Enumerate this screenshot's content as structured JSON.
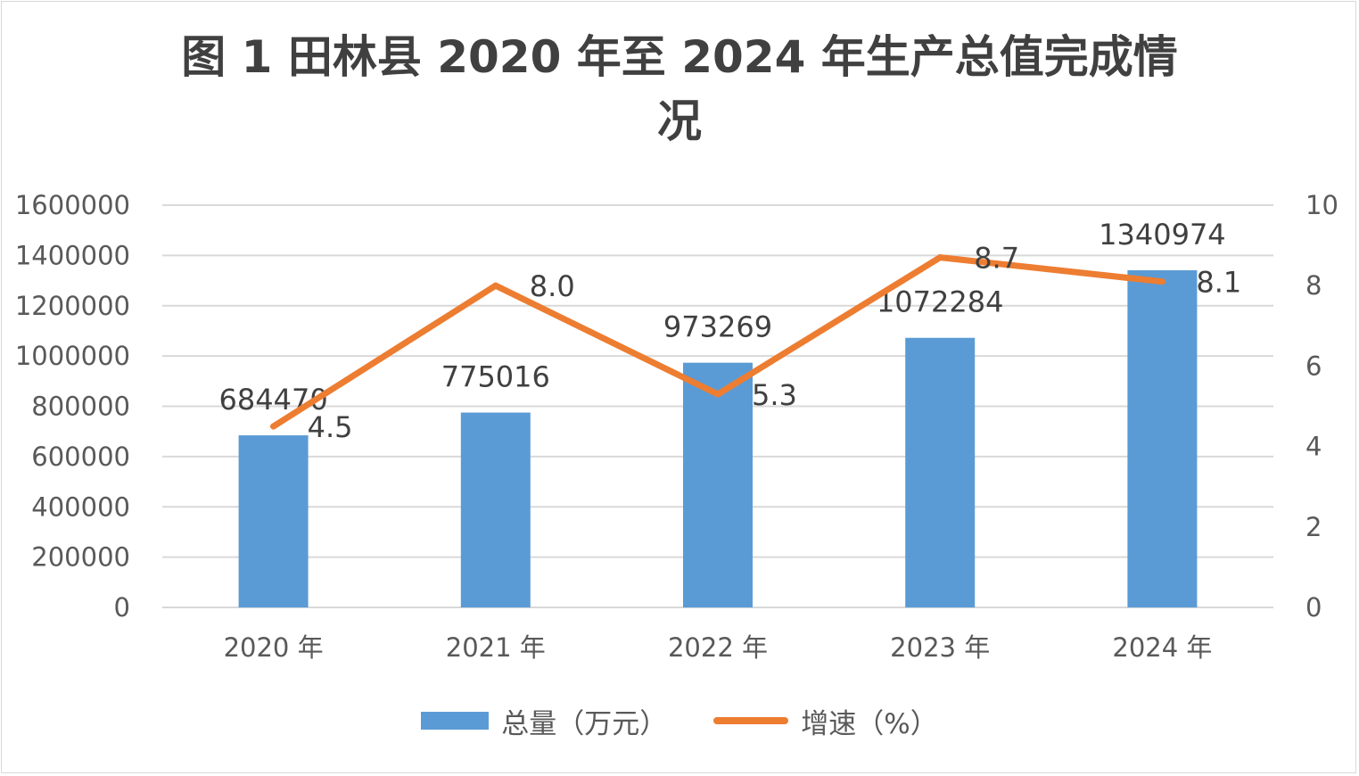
{
  "chart_data": {
    "type": "bar",
    "title_line1": "图 1 田林县 2020 年至 2024 年生产总值完成情",
    "title_line2": "况",
    "categories": [
      "2020 年",
      "2021 年",
      "2022 年",
      "2023 年",
      "2024 年"
    ],
    "series": [
      {
        "name": "总量（万元）",
        "type": "bar",
        "axis": "left",
        "color": "#5B9BD5",
        "values": [
          684470,
          775016,
          973269,
          1072284,
          1340974
        ],
        "labels": [
          "684470",
          "775016",
          "973269",
          "1072284",
          "1340974"
        ]
      },
      {
        "name": "增速（%）",
        "type": "line",
        "axis": "right",
        "color": "#ED7D31",
        "values": [
          4.5,
          8.0,
          5.3,
          8.7,
          8.1
        ],
        "labels": [
          "4.5",
          "8.0",
          "5.3",
          "8.7",
          "8.1"
        ]
      }
    ],
    "y_left": {
      "ylim": [
        0,
        1600000
      ],
      "ticks": [
        "0",
        "200000",
        "400000",
        "600000",
        "800000",
        "1000000",
        "1200000",
        "1400000",
        "1600000"
      ]
    },
    "y_right": {
      "ylim": [
        0,
        10
      ],
      "ticks": [
        "0",
        "2",
        "4",
        "6",
        "8",
        "10"
      ]
    },
    "grid": true,
    "legend_position": "bottom"
  }
}
